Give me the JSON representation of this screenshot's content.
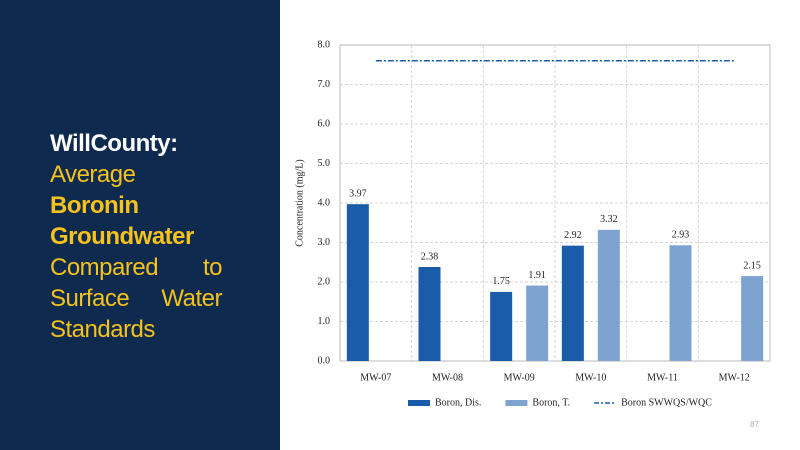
{
  "slide": {
    "heading": [
      "WillCounty:",
      "Average",
      "Boronin",
      "Groundwater",
      "Compared to Surface Water Standards"
    ],
    "page_number": "87"
  },
  "chart_data": {
    "type": "bar",
    "y_label": "Concentration (mg/L)",
    "categories": [
      "MW-07",
      "MW-08",
      "MW-09",
      "MW-10",
      "MW-11",
      "MW-12"
    ],
    "series": [
      {
        "name": "Boron, Dis.",
        "color": "#1a5ca8",
        "values": [
          3.97,
          2.38,
          1.75,
          2.92,
          null,
          null
        ]
      },
      {
        "name": "Boron, T.",
        "color": "#7fa3d0",
        "values": [
          null,
          null,
          1.91,
          3.32,
          2.93,
          2.15
        ]
      },
      {
        "name": "Boron SWWQS/WQC",
        "type": "line",
        "color": "#1a5ca8",
        "values": [
          7.6,
          7.6,
          7.6,
          7.6,
          7.6,
          7.6
        ]
      }
    ],
    "ylim": [
      0,
      8
    ],
    "yticks": [
      {
        "value": 0,
        "label": "0.0"
      },
      {
        "value": 1,
        "label": "1.0"
      },
      {
        "value": 2,
        "label": "2.0"
      },
      {
        "value": 3,
        "label": "3.0"
      },
      {
        "value": 4,
        "label": "4.0"
      },
      {
        "value": 5,
        "label": "5.0"
      },
      {
        "value": 6,
        "label": "6.0"
      },
      {
        "value": 7,
        "label": "7.0"
      },
      {
        "value": 8,
        "label": "8.0"
      }
    ],
    "grid": true
  }
}
